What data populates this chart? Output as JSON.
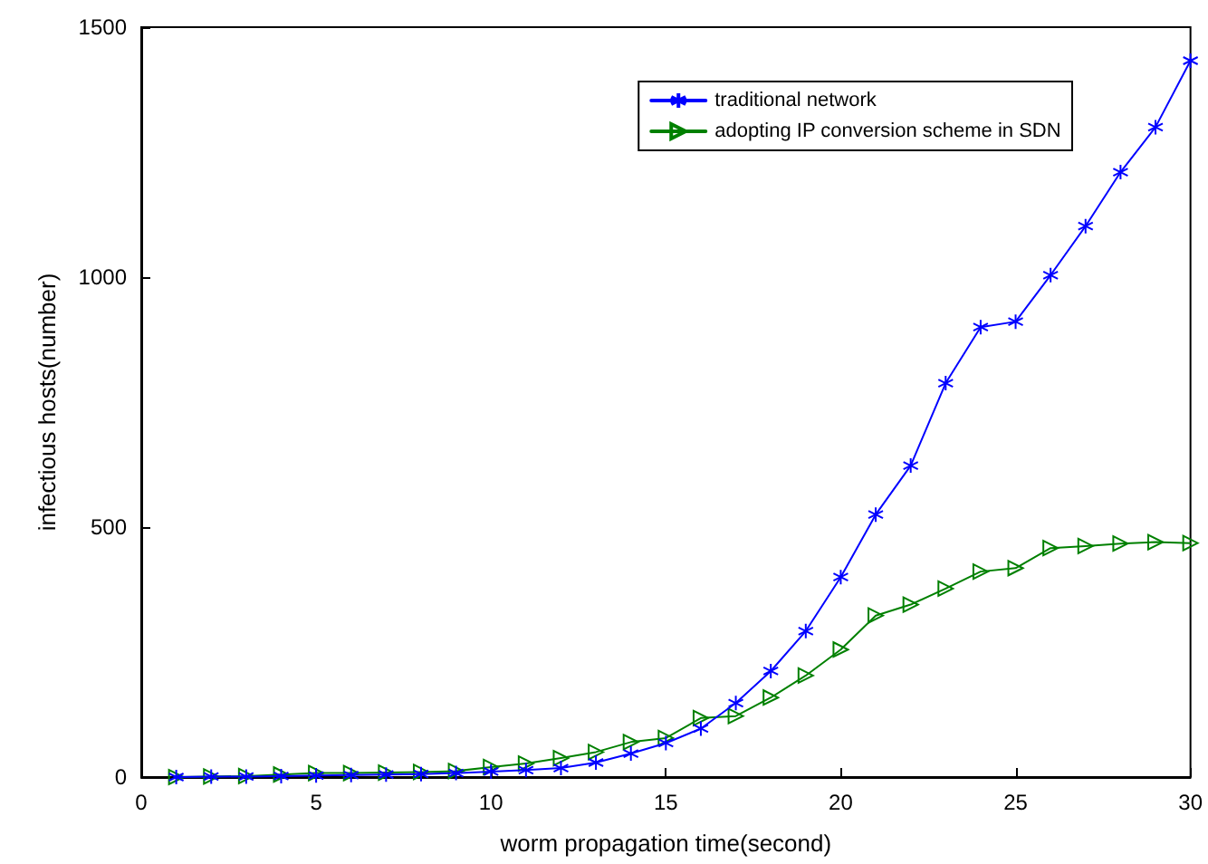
{
  "chart_data": {
    "type": "line",
    "xlabel": "worm propagation time(second)",
    "ylabel": "infectious hosts(number)",
    "x": [
      1,
      2,
      3,
      4,
      5,
      6,
      7,
      8,
      9,
      10,
      11,
      12,
      13,
      14,
      15,
      16,
      17,
      18,
      19,
      20,
      21,
      22,
      23,
      24,
      25,
      26,
      27,
      28,
      29,
      30
    ],
    "series": [
      {
        "name": "traditional network",
        "color": "#0000ff",
        "marker": "cross",
        "values": [
          0,
          1,
          1,
          2,
          3,
          4,
          5,
          6,
          8,
          11,
          14,
          18,
          29,
          47,
          68,
          97,
          148,
          212,
          292,
          400,
          525,
          623,
          788,
          900,
          911,
          1004,
          1102,
          1210,
          1300,
          1433
        ]
      },
      {
        "name": "adopting IP conversion scheme in SDN",
        "color": "#008000",
        "marker": "triangle",
        "values": [
          0,
          1,
          2,
          5,
          8,
          8,
          9,
          10,
          12,
          20,
          27,
          38,
          50,
          70,
          78,
          118,
          122,
          159,
          203,
          255,
          323,
          345,
          377,
          411,
          418,
          458,
          462,
          467,
          470,
          468
        ]
      }
    ],
    "xlim": [
      0,
      30
    ],
    "xticks": [
      0,
      5,
      10,
      15,
      20,
      25,
      30
    ],
    "ylim": [
      0,
      1500
    ],
    "yticks": [
      0,
      500,
      1000,
      1500
    ],
    "grid": false,
    "legend": "top right",
    "line_style": "solid"
  }
}
